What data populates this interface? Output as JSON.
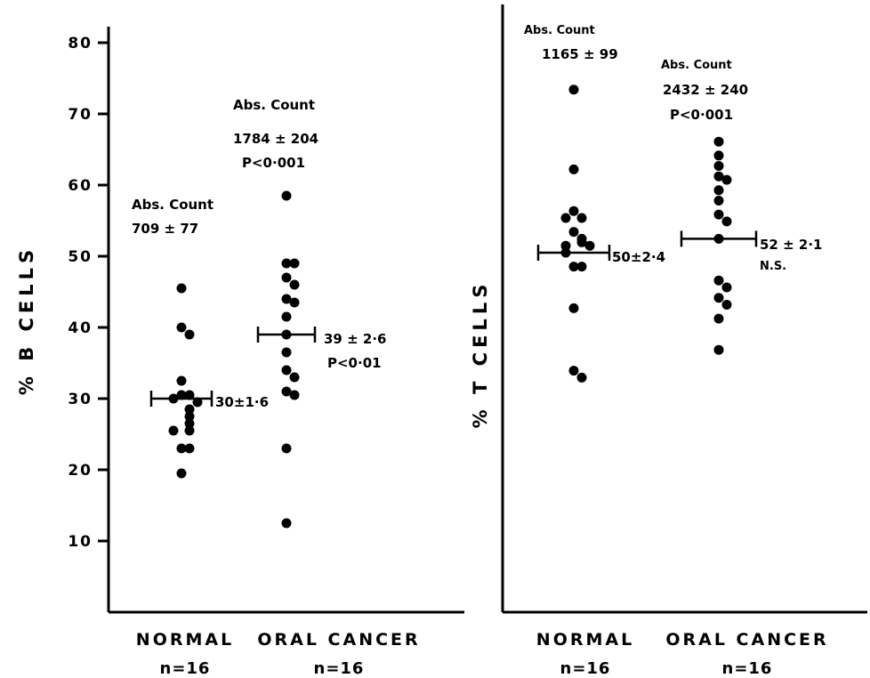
{
  "chart_data": [
    {
      "type": "scatter",
      "panel": "left",
      "ylabel": "% B CELLS",
      "ylim": [
        0,
        80
      ],
      "yticks": [
        "10",
        "20",
        "30",
        "40",
        "50",
        "60",
        "70",
        "80"
      ],
      "categories": [
        {
          "name": "NORMAL",
          "n": "n=16"
        },
        {
          "name": "ORAL CANCER",
          "n": "n=16"
        }
      ],
      "groups": [
        {
          "category": "NORMAL",
          "values": [
            45.5,
            40,
            39,
            32.5,
            30.5,
            30.5,
            30,
            29.5,
            28.5,
            27.5,
            26.5,
            25.5,
            25.5,
            23,
            23,
            19.5
          ],
          "mean": 30,
          "mean_label": "30±1·6",
          "abs_count_title": "Abs. Count",
          "abs_count": "709 ± 77",
          "p_value": ""
        },
        {
          "category": "ORAL CANCER",
          "values": [
            58.5,
            49,
            49,
            47,
            46,
            44,
            43.5,
            41.5,
            39,
            36.5,
            34,
            33,
            31,
            30.5,
            23,
            12.5
          ],
          "mean": 39,
          "mean_label": "39 ± 2·6",
          "mean_p": "P<0·01",
          "abs_count_title": "Abs. Count",
          "abs_count": "1784 ± 204",
          "p_value": "P<0·001"
        }
      ]
    },
    {
      "type": "scatter",
      "panel": "right",
      "ylabel": "% T CELLS",
      "ylim": [
        0,
        80
      ],
      "categories": [
        {
          "name": "NORMAL",
          "n": "n=16"
        },
        {
          "name": "ORAL CANCER",
          "n": "n=16"
        }
      ],
      "groups": [
        {
          "category": "NORMAL",
          "values": [
            73.5,
            62,
            56,
            55,
            55,
            53,
            52,
            51.5,
            51,
            51,
            50,
            48,
            48,
            42,
            33,
            32
          ],
          "mean": 50,
          "mean_label": "50±2·4",
          "abs_count_title": "Abs. Count",
          "abs_count": "1165 ± 99",
          "p_value": ""
        },
        {
          "category": "ORAL CANCER",
          "values": [
            66,
            64,
            62.5,
            61,
            60.5,
            59,
            57.5,
            55.5,
            54.5,
            46,
            45,
            43.5,
            42.5,
            40.5,
            36,
            52
          ],
          "mean": 52,
          "mean_label": "52 ± 2·1",
          "mean_p": "N.S.",
          "abs_count_title": "Abs. Count",
          "abs_count": "2432 ± 240",
          "p_value": "P<0·001"
        }
      ]
    }
  ]
}
